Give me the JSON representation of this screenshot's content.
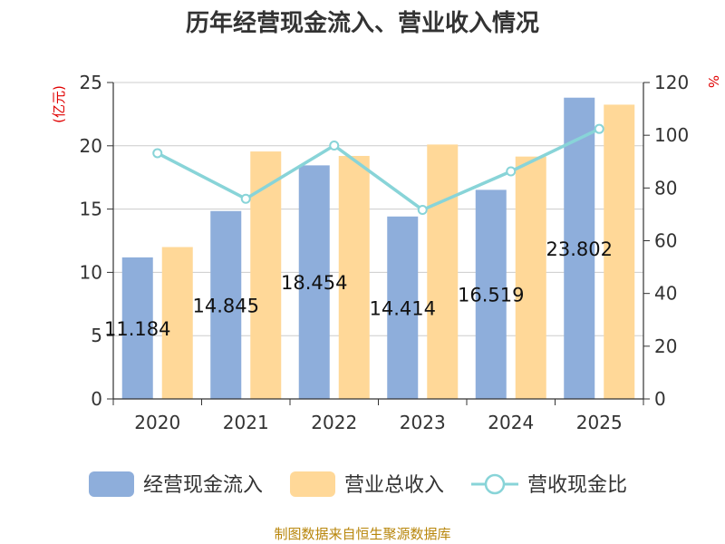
{
  "chart_data": {
    "type": "bar",
    "title": "历年经营现金流入、营业收入情况",
    "categories": [
      "2020",
      "2021",
      "2022",
      "2023",
      "2024",
      "2025"
    ],
    "series": [
      {
        "name": "经营现金流入",
        "axis": "left",
        "kind": "bar",
        "color": "#8eaedb",
        "values": [
          11.184,
          14.845,
          18.454,
          14.414,
          16.519,
          23.802
        ]
      },
      {
        "name": "营业总收入",
        "axis": "left",
        "kind": "bar",
        "color": "#ffd898",
        "values": [
          12.0,
          19.55,
          19.2,
          20.1,
          19.15,
          23.25
        ]
      },
      {
        "name": "营收现金比",
        "axis": "right",
        "kind": "line",
        "color": "#88d4d8",
        "values": [
          93.2,
          75.9,
          96.1,
          71.7,
          86.3,
          102.4
        ]
      }
    ],
    "data_labels": [
      "11.184",
      "14.845",
      "18.454",
      "14.414",
      "16.519",
      "23.802"
    ],
    "y_left": {
      "unit": "(亿元)",
      "ylim": [
        0,
        25
      ],
      "ticks": [
        "0",
        "5",
        "10",
        "15",
        "20",
        "25"
      ]
    },
    "y_right": {
      "unit": "%",
      "ylim": [
        0,
        120
      ],
      "ticks": [
        "0",
        "20",
        "40",
        "60",
        "80",
        "100",
        "120"
      ]
    },
    "grid": true,
    "legend": {
      "position": "bottom"
    },
    "source": "制图数据来自恒生聚源数据库"
  }
}
